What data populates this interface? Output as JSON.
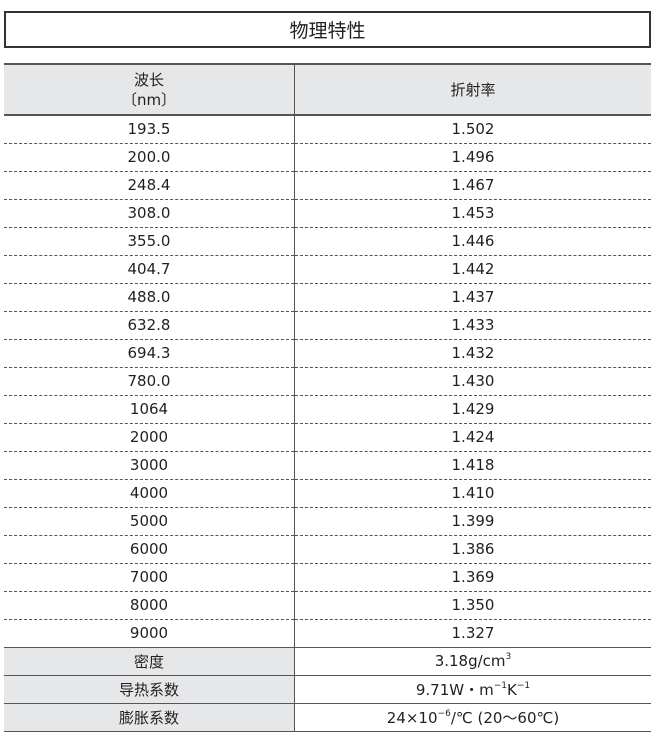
{
  "title": "物理特性",
  "header": {
    "wavelength": "波长",
    "unit": "〔nm〕",
    "refractive_index": "折射率"
  },
  "rows": [
    [
      "193.5",
      "1.502"
    ],
    [
      "200.0",
      "1.496"
    ],
    [
      "248.4",
      "1.467"
    ],
    [
      "308.0",
      "1.453"
    ],
    [
      "355.0",
      "1.446"
    ],
    [
      "404.7",
      "1.442"
    ],
    [
      "488.0",
      "1.437"
    ],
    [
      "632.8",
      "1.433"
    ],
    [
      "694.3",
      "1.432"
    ],
    [
      "780.0",
      "1.430"
    ],
    [
      "1064",
      "1.429"
    ],
    [
      "2000",
      "1.424"
    ],
    [
      "3000",
      "1.418"
    ],
    [
      "4000",
      "1.410"
    ],
    [
      "5000",
      "1.399"
    ],
    [
      "6000",
      "1.386"
    ],
    [
      "7000",
      "1.369"
    ],
    [
      "8000",
      "1.350"
    ],
    [
      "9000",
      "1.327"
    ]
  ],
  "properties": [
    {
      "label": "密度",
      "value": [
        {
          "t": "3.18g/cm"
        },
        {
          "t": "3",
          "sup": true
        }
      ]
    },
    {
      "label": "导热系数",
      "value": [
        {
          "t": "9.71W・m"
        },
        {
          "t": "−1",
          "sup": true
        },
        {
          "t": "K"
        },
        {
          "t": "−1",
          "sup": true
        }
      ]
    },
    {
      "label": "膨胀系数",
      "value": [
        {
          "t": "24×10"
        },
        {
          "t": "−6",
          "sup": true
        },
        {
          "t": "/℃ (20～60℃)"
        }
      ]
    }
  ]
}
